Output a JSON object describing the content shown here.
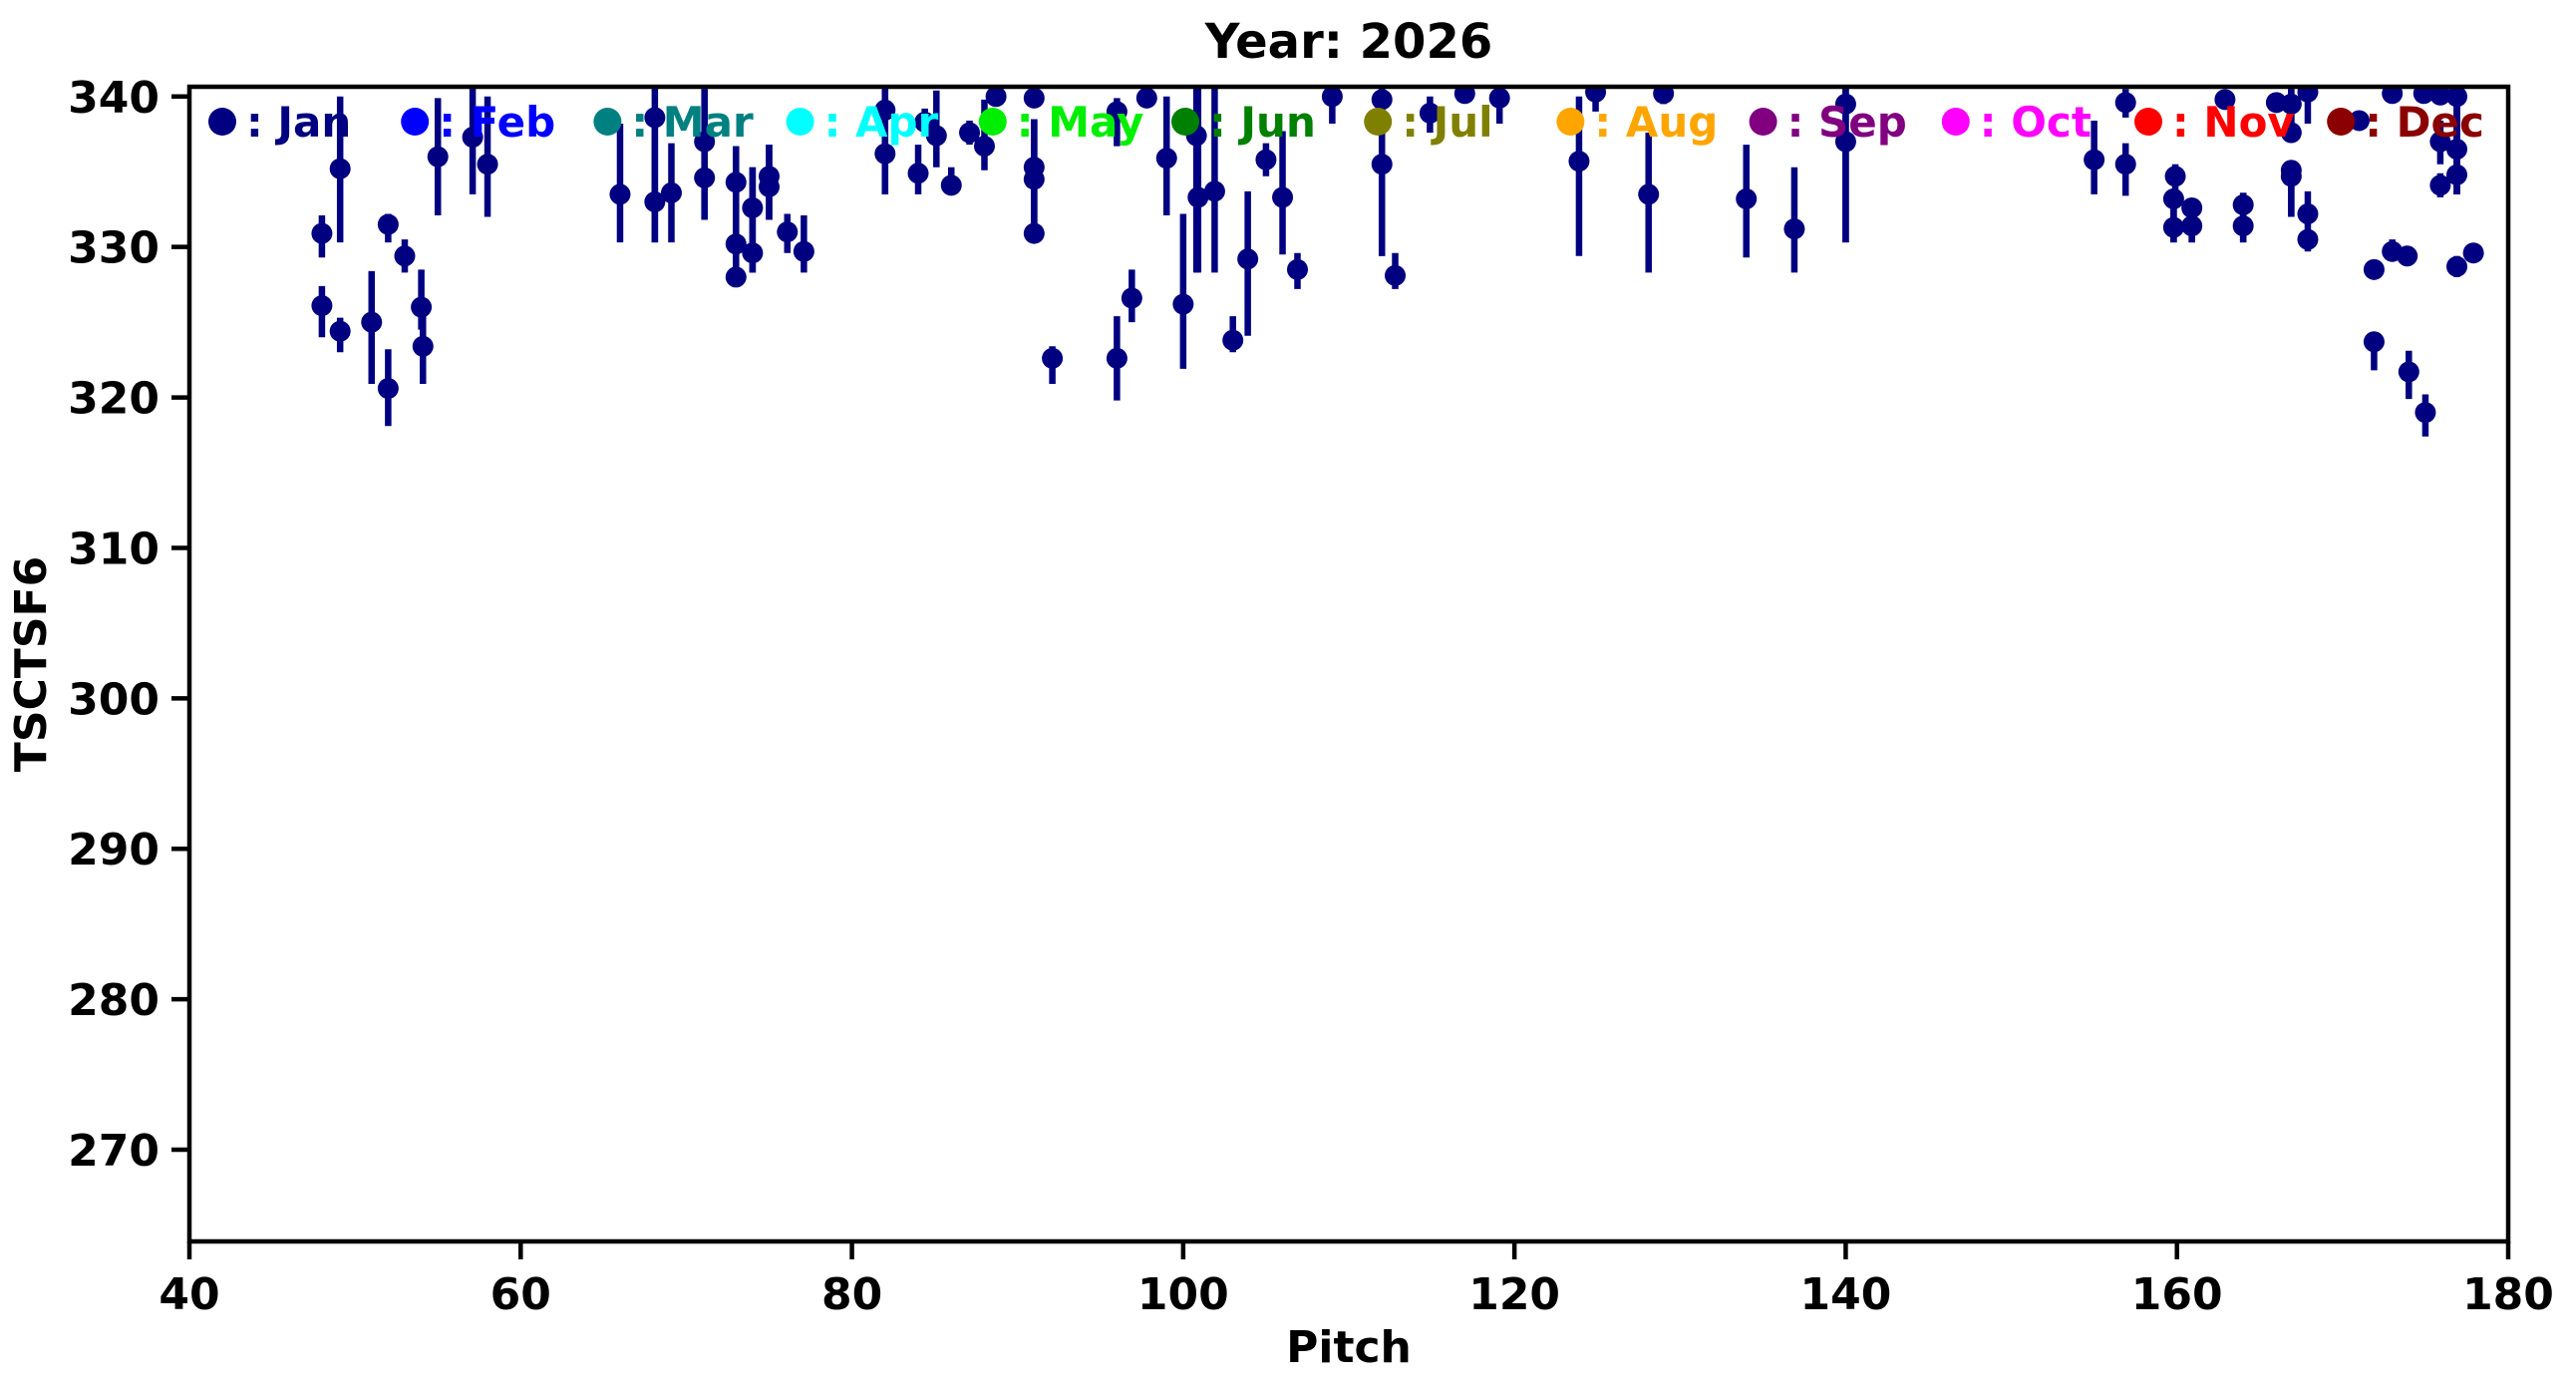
{
  "title": "Year: 2026",
  "chart_data": {
    "type": "scatter",
    "title": "Year: 2026",
    "xlabel": "Pitch",
    "ylabel": "TSCTSF6",
    "xlim": [
      40,
      180
    ],
    "ylim": [
      263.9,
      340.65
    ],
    "xticks": [
      40,
      60,
      80,
      100,
      120,
      140,
      160,
      180
    ],
    "yticks": [
      270,
      280,
      290,
      300,
      310,
      320,
      330,
      340
    ],
    "grid": false,
    "marker_color": "#000080",
    "legend": {
      "position": "top-inside",
      "entries": [
        {
          "label": "Jan",
          "color": "#000080"
        },
        {
          "label": "Feb",
          "color": "#0000FF"
        },
        {
          "label": "Mar",
          "color": "#008080"
        },
        {
          "label": "Apr",
          "color": "#00FFFF"
        },
        {
          "label": "May",
          "color": "#00EE00"
        },
        {
          "label": "Jun",
          "color": "#008000"
        },
        {
          "label": "Jul",
          "color": "#808000"
        },
        {
          "label": "Aug",
          "color": "#FFA500"
        },
        {
          "label": "Sep",
          "color": "#800080"
        },
        {
          "label": "Oct",
          "color": "#FF00FF"
        },
        {
          "label": "Nov",
          "color": "#FF0000"
        },
        {
          "label": "Dec",
          "color": "#8B0000"
        }
      ]
    },
    "series": [
      {
        "name": "Jan",
        "color": "#000080",
        "note": "points as [pitch, value, err_lo, err_hi]",
        "points": [
          [
            48.0,
            330.9,
            329.3,
            332.1
          ],
          [
            48.0,
            326.1,
            324.0,
            327.4
          ],
          [
            49.1,
            335.2,
            330.3,
            340.0
          ],
          [
            49.1,
            324.4,
            323.0,
            325.3
          ],
          [
            51.0,
            325.0,
            320.9,
            328.4
          ],
          [
            52.0,
            331.5,
            330.3,
            332.2
          ],
          [
            52.0,
            320.6,
            318.1,
            323.2
          ],
          [
            53.0,
            329.4,
            328.3,
            330.5
          ],
          [
            54.0,
            326.0,
            324.5,
            328.5
          ],
          [
            54.1,
            323.4,
            320.9,
            325.9
          ],
          [
            55.0,
            336.0,
            332.1,
            339.9
          ],
          [
            57.1,
            337.3,
            333.5,
            341
          ],
          [
            58.0,
            335.5,
            332.0,
            340.0
          ],
          [
            66.0,
            333.5,
            330.3,
            338.2
          ],
          [
            68.1,
            338.6,
            330.3,
            341
          ],
          [
            68.1,
            333.0,
            330.3,
            338.6
          ],
          [
            69.1,
            333.6,
            330.3,
            336.9
          ],
          [
            71.1,
            337.0,
            331.8,
            340.5
          ],
          [
            71.1,
            334.6,
            331.8,
            340.5
          ],
          [
            73.0,
            334.3,
            327.4,
            336.7
          ],
          [
            73.0,
            330.2,
            327.4,
            336.7
          ],
          [
            73.0,
            328.0,
            327.4,
            336.7
          ],
          [
            74.0,
            332.6,
            328.3,
            335.3
          ],
          [
            74.0,
            329.6,
            328.3,
            335.3
          ],
          [
            75.0,
            334.7,
            331.8,
            336.8
          ],
          [
            75.0,
            334.0,
            331.8,
            336.8
          ],
          [
            76.1,
            331.0,
            329.6,
            332.2
          ],
          [
            77.1,
            329.7,
            328.3,
            332.1
          ],
          [
            82.0,
            339.1,
            333.5,
            341
          ],
          [
            82.0,
            336.2,
            333.5,
            341
          ],
          [
            84.0,
            334.9,
            333.5,
            336.8
          ],
          [
            84.4,
            338.3,
            337.5,
            339.2
          ],
          [
            85.1,
            337.4,
            335.3,
            340.4
          ],
          [
            86.0,
            334.1,
            334.1,
            335.3
          ],
          [
            87.1,
            337.6,
            336.8,
            338.4
          ],
          [
            88.0,
            336.7,
            335.1,
            339.8
          ],
          [
            88.7,
            340.0,
            339.5,
            340.5
          ],
          [
            91.0,
            339.9,
            339.4,
            340.4
          ],
          [
            91.0,
            335.3,
            330.6,
            338.5
          ],
          [
            91.0,
            334.5,
            330.6,
            338.5
          ],
          [
            91.0,
            330.9,
            330.6,
            338.5
          ],
          [
            92.1,
            322.6,
            320.9,
            323.4
          ],
          [
            96.0,
            339.0,
            336.7,
            339.9
          ],
          [
            96.0,
            322.6,
            319.8,
            325.4
          ],
          [
            96.9,
            326.6,
            325.0,
            328.5
          ],
          [
            97.8,
            339.9,
            339.3,
            340.4
          ],
          [
            99.0,
            335.9,
            332.1,
            340.0
          ],
          [
            100.0,
            326.2,
            321.9,
            332.2
          ],
          [
            100.8,
            337.4,
            328.3,
            341
          ],
          [
            100.9,
            333.3,
            328.3,
            341
          ],
          [
            101.9,
            333.7,
            328.3,
            341
          ],
          [
            103.0,
            323.8,
            323.0,
            325.4
          ],
          [
            103.9,
            329.2,
            324.1,
            333.7
          ],
          [
            105.0,
            335.8,
            334.7,
            336.9
          ],
          [
            106.0,
            333.3,
            329.5,
            337.7
          ],
          [
            106.9,
            328.5,
            327.2,
            329.6
          ],
          [
            109.0,
            340.0,
            338.2,
            341
          ],
          [
            112.0,
            339.8,
            329.4,
            341
          ],
          [
            112.0,
            335.5,
            329.4,
            341
          ],
          [
            112.8,
            328.1,
            327.2,
            329.6
          ],
          [
            114.9,
            338.9,
            337.6,
            340.0
          ],
          [
            117.0,
            340.2,
            339.7,
            341
          ],
          [
            119.1,
            339.9,
            338.2,
            341
          ],
          [
            123.9,
            335.7,
            329.4,
            340.0
          ],
          [
            124.9,
            340.3,
            339.0,
            341
          ],
          [
            128.1,
            333.5,
            328.3,
            337.6
          ],
          [
            129.0,
            340.2,
            339.5,
            341
          ],
          [
            134.0,
            333.2,
            329.3,
            336.8
          ],
          [
            136.9,
            331.2,
            328.3,
            335.3
          ],
          [
            140.0,
            339.5,
            330.3,
            341
          ],
          [
            140.0,
            337.0,
            330.3,
            341
          ],
          [
            155.0,
            335.8,
            333.5,
            338.4
          ],
          [
            156.9,
            339.6,
            338.6,
            340.5
          ],
          [
            156.9,
            335.5,
            333.4,
            336.9
          ],
          [
            159.9,
            334.7,
            333.6,
            335.5
          ],
          [
            159.8,
            333.2,
            330.3,
            333.6
          ],
          [
            159.8,
            331.3,
            330.3,
            333.6
          ],
          [
            160.9,
            332.6,
            330.3,
            333.0
          ],
          [
            160.9,
            331.4,
            330.3,
            333.0
          ],
          [
            162.9,
            339.8,
            339.3,
            340.4
          ],
          [
            164.0,
            332.8,
            330.3,
            333.6
          ],
          [
            164.0,
            331.4,
            330.3,
            333.6
          ],
          [
            166.0,
            339.6,
            339.1,
            340.1
          ],
          [
            166.9,
            339.5,
            337.0,
            340.5
          ],
          [
            166.9,
            337.6,
            337.0,
            340.5
          ],
          [
            166.9,
            335.1,
            332.0,
            335.5
          ],
          [
            166.9,
            334.7,
            332.0,
            335.5
          ],
          [
            167.9,
            340.3,
            338.2,
            341
          ],
          [
            167.9,
            332.2,
            331.3,
            333.7
          ],
          [
            167.9,
            330.5,
            329.7,
            331.3
          ],
          [
            171.0,
            338.4,
            337.8,
            339.0
          ],
          [
            171.9,
            328.5,
            328.5,
            328.5
          ],
          [
            171.9,
            323.7,
            321.8,
            324.3
          ],
          [
            173.0,
            340.2,
            339.7,
            341
          ],
          [
            173.0,
            329.7,
            329.1,
            330.5
          ],
          [
            173.9,
            329.4,
            329.4,
            329.4
          ],
          [
            174.0,
            321.7,
            319.9,
            323.1
          ],
          [
            174.9,
            340.2,
            339.8,
            341
          ],
          [
            175.0,
            319.0,
            317.4,
            320.2
          ],
          [
            175.9,
            337.0,
            335.5,
            338.4
          ],
          [
            175.9,
            334.1,
            333.3,
            334.9
          ],
          [
            175.9,
            340.1,
            339.6,
            341
          ],
          [
            176.9,
            340.0,
            333.5,
            341
          ],
          [
            176.9,
            336.5,
            333.5,
            341
          ],
          [
            176.9,
            334.8,
            333.5,
            341
          ],
          [
            176.9,
            328.7,
            328.0,
            329.4
          ],
          [
            177.9,
            329.6,
            329.6,
            329.6
          ]
        ]
      }
    ]
  }
}
